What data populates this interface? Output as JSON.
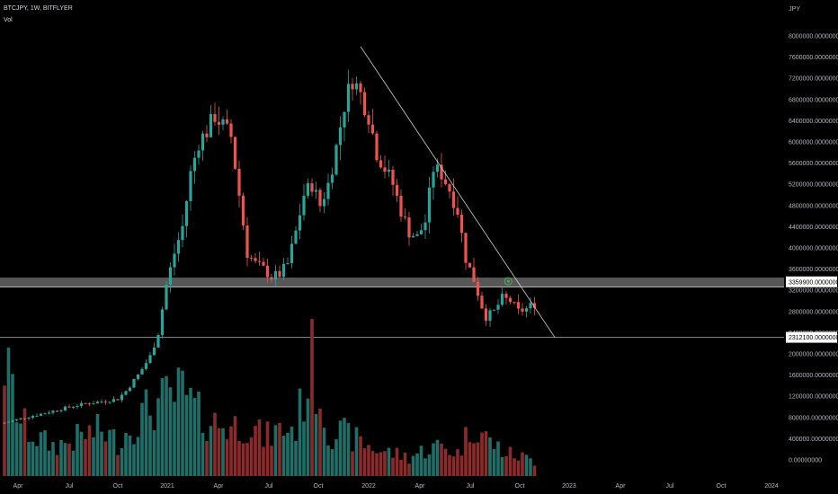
{
  "header": {
    "symbol_line": "BTCJPY, 1W, BITFLYER",
    "volume_label": "Vol",
    "currency": "JPY"
  },
  "colors": {
    "background": "#000000",
    "up": "#26a69a",
    "down": "#ef5350",
    "up_volume": "#1f6f68",
    "down_volume": "#8a2a2a",
    "trendline": "#d1d4dc",
    "support_band": "#9e9e9e",
    "marker": "#4caf50"
  },
  "chart_data": {
    "type": "candlestick",
    "title": "BTCJPY, 1W, BITFLYER",
    "xlabel": "",
    "ylabel": "JPY",
    "ylim": [
      -200000,
      8300000
    ],
    "y_ticks": [
      "8000000.00000000",
      "7600000.00000000",
      "7200000.00000000",
      "6800000.00000000",
      "6400000.00000000",
      "6000000.00000000",
      "5600000.00000000",
      "5200000.00000000",
      "4800000.00000000",
      "4400000.00000000",
      "4000000.00000000",
      "3600000.00000000",
      "3200000.00000000",
      "2800000.00000000",
      "2400000.00000000",
      "2000000.00000000",
      "1600000.00000000",
      "1200000.00000000",
      "800000.00000000",
      "400000.00000000",
      "0.00000000"
    ],
    "x_ticks": [
      "Apr",
      "Jul",
      "Oct",
      "2021",
      "Apr",
      "Jul",
      "Oct",
      "2022",
      "Apr",
      "Jul",
      "Oct",
      "2023",
      "Apr",
      "Jul",
      "Oct",
      "2024"
    ],
    "price_labels": [
      {
        "text": "3359900.00000000",
        "value": 3359900
      },
      {
        "text": "2312100.00000000",
        "value": 2312100
      }
    ],
    "support_band": [
      3260000,
      3440000
    ],
    "support_line": 3260000,
    "lower_line": 2312100,
    "trendline": [
      {
        "week": 88,
        "price": 7800000
      },
      {
        "week": 136,
        "price": 2312100
      }
    ],
    "trend_touch": {
      "week": 124.5,
      "price": 3370000
    },
    "series": [
      {
        "name": "Price",
        "points": [
          {
            "t": 0,
            "price": 700000
          },
          {
            "t": 4,
            "price": 780000
          },
          {
            "t": 8,
            "price": 850000
          },
          {
            "t": 12,
            "price": 920000
          },
          {
            "t": 16,
            "price": 1000000
          },
          {
            "t": 20,
            "price": 1060000
          },
          {
            "t": 24,
            "price": 1100000
          },
          {
            "t": 28,
            "price": 1150000
          },
          {
            "t": 30,
            "price": 1300000
          },
          {
            "t": 33,
            "price": 1600000
          },
          {
            "t": 36,
            "price": 1950000
          },
          {
            "t": 38,
            "price": 2400000
          },
          {
            "t": 40,
            "price": 3300000
          },
          {
            "t": 42,
            "price": 3900000
          },
          {
            "t": 44,
            "price": 4400000
          },
          {
            "t": 46,
            "price": 5400000
          },
          {
            "t": 48,
            "price": 6000000
          },
          {
            "t": 50,
            "price": 6200000
          },
          {
            "t": 52,
            "price": 6500000
          },
          {
            "t": 54,
            "price": 6300000
          },
          {
            "t": 56,
            "price": 6100000
          },
          {
            "t": 58,
            "price": 5000000
          },
          {
            "t": 60,
            "price": 3900000
          },
          {
            "t": 62,
            "price": 3700000
          },
          {
            "t": 64,
            "price": 3600000
          },
          {
            "t": 66,
            "price": 3450000
          },
          {
            "t": 68,
            "price": 3500000
          },
          {
            "t": 70,
            "price": 3700000
          },
          {
            "t": 72,
            "price": 4300000
          },
          {
            "t": 74,
            "price": 5000000
          },
          {
            "t": 76,
            "price": 5200000
          },
          {
            "t": 78,
            "price": 4800000
          },
          {
            "t": 80,
            "price": 5200000
          },
          {
            "t": 82,
            "price": 5900000
          },
          {
            "t": 84,
            "price": 6700000
          },
          {
            "t": 86,
            "price": 7200000
          },
          {
            "t": 88,
            "price": 6900000
          },
          {
            "t": 90,
            "price": 6500000
          },
          {
            "t": 92,
            "price": 5800000
          },
          {
            "t": 94,
            "price": 5500000
          },
          {
            "t": 96,
            "price": 5200000
          },
          {
            "t": 98,
            "price": 4700000
          },
          {
            "t": 100,
            "price": 4300000
          },
          {
            "t": 102,
            "price": 4200000
          },
          {
            "t": 104,
            "price": 4500000
          },
          {
            "t": 106,
            "price": 5500000
          },
          {
            "t": 108,
            "price": 5400000
          },
          {
            "t": 110,
            "price": 5100000
          },
          {
            "t": 112,
            "price": 4700000
          },
          {
            "t": 114,
            "price": 3800000
          },
          {
            "t": 116,
            "price": 3400000
          },
          {
            "t": 118,
            "price": 2900000
          },
          {
            "t": 119,
            "price": 2700000
          },
          {
            "t": 121,
            "price": 2800000
          },
          {
            "t": 123,
            "price": 3050000
          },
          {
            "t": 125,
            "price": 3000000
          },
          {
            "t": 127,
            "price": 2800000
          },
          {
            "t": 129,
            "price": 2850000
          },
          {
            "t": 131,
            "price": 2950000
          }
        ]
      }
    ],
    "volume": [
      {
        "t": 0,
        "v": 1500000
      },
      {
        "t": 4,
        "v": 700000
      },
      {
        "t": 8,
        "v": 500000
      },
      {
        "t": 12,
        "v": 400000
      },
      {
        "t": 16,
        "v": 450000
      },
      {
        "t": 20,
        "v": 550000
      },
      {
        "t": 24,
        "v": 600000
      },
      {
        "t": 28,
        "v": 450000
      },
      {
        "t": 32,
        "v": 700000
      },
      {
        "t": 36,
        "v": 900000
      },
      {
        "t": 40,
        "v": 1000000
      },
      {
        "t": 44,
        "v": 1100000
      },
      {
        "t": 48,
        "v": 800000
      },
      {
        "t": 52,
        "v": 700000
      },
      {
        "t": 56,
        "v": 650000
      },
      {
        "t": 60,
        "v": 700000
      },
      {
        "t": 64,
        "v": 500000
      },
      {
        "t": 68,
        "v": 600000
      },
      {
        "t": 72,
        "v": 650000
      },
      {
        "t": 76,
        "v": 1500000
      },
      {
        "t": 80,
        "v": 600000
      },
      {
        "t": 84,
        "v": 550000
      },
      {
        "t": 88,
        "v": 450000
      },
      {
        "t": 92,
        "v": 350000
      },
      {
        "t": 96,
        "v": 300000
      },
      {
        "t": 100,
        "v": 250000
      },
      {
        "t": 104,
        "v": 350000
      },
      {
        "t": 108,
        "v": 400000
      },
      {
        "t": 112,
        "v": 300000
      },
      {
        "t": 116,
        "v": 700000
      },
      {
        "t": 120,
        "v": 450000
      },
      {
        "t": 124,
        "v": 300000
      },
      {
        "t": 128,
        "v": 250000
      },
      {
        "t": 131,
        "v": 200000
      }
    ]
  }
}
